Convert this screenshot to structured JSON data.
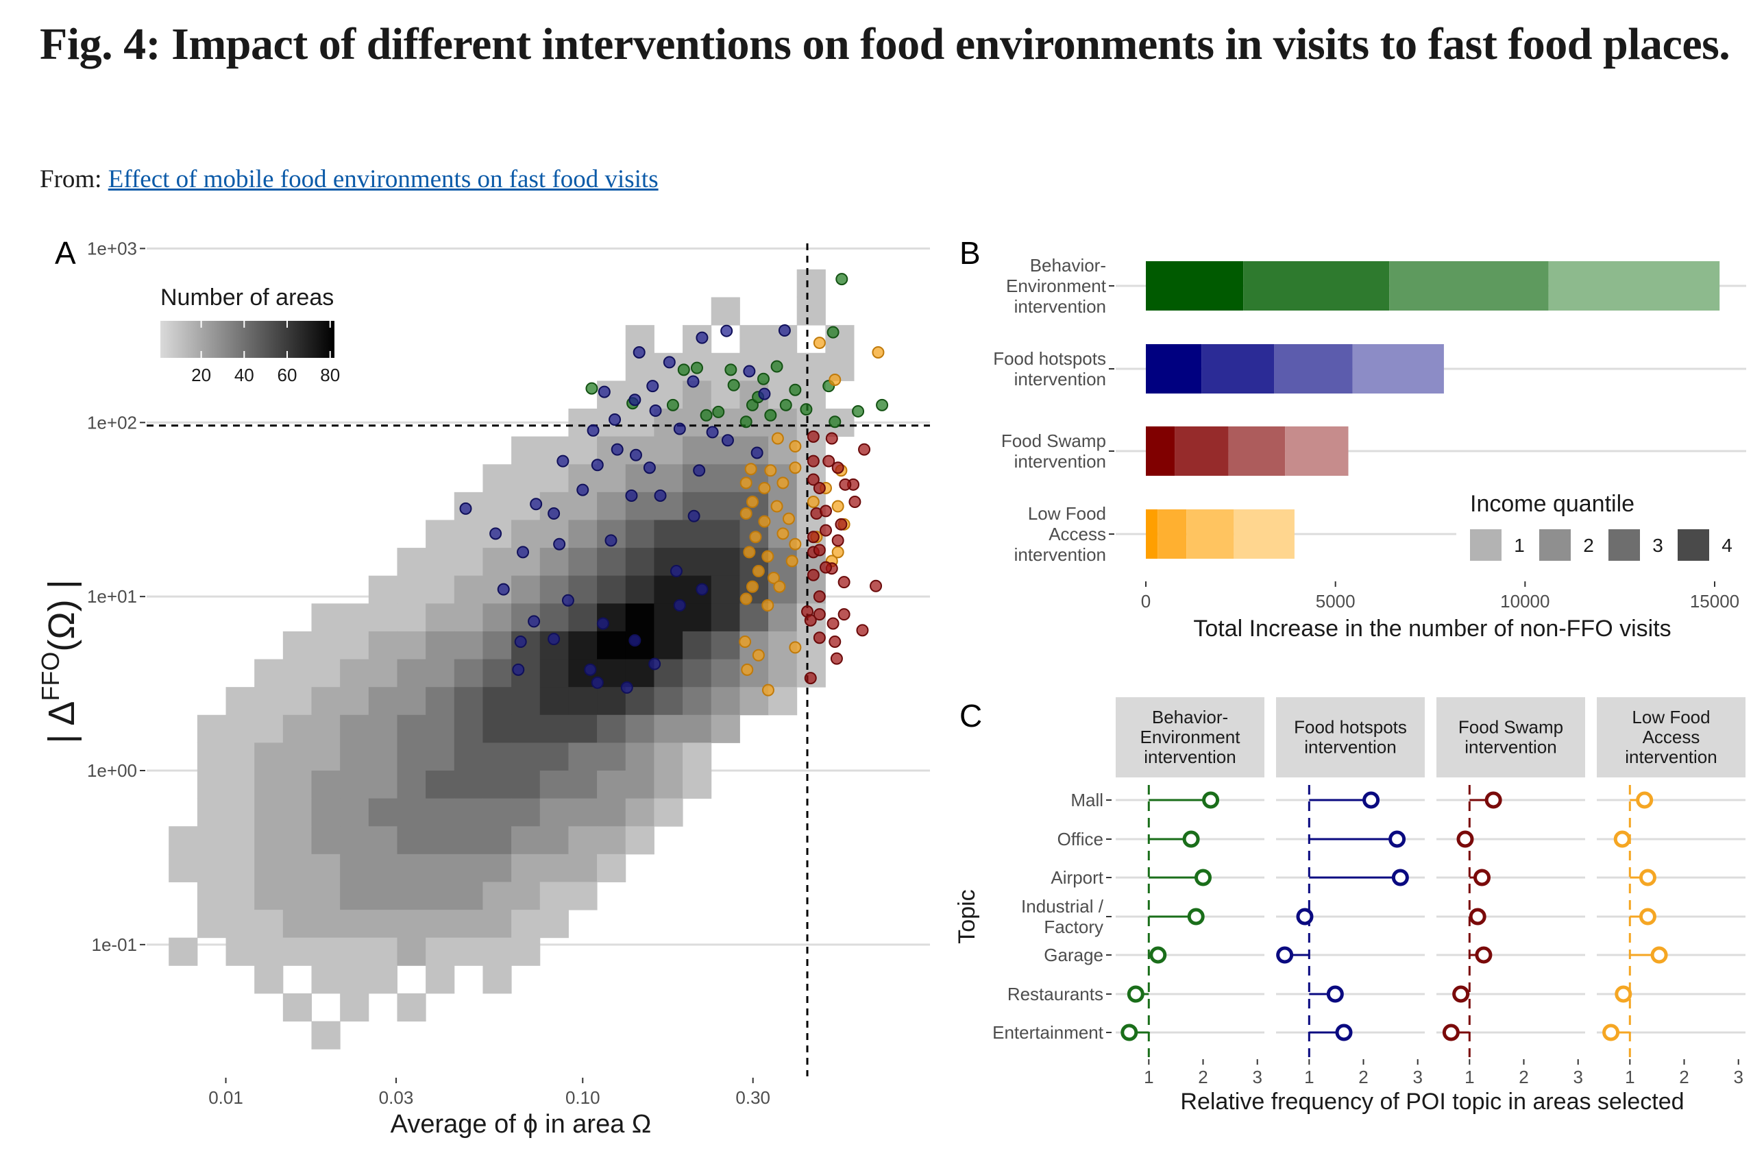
{
  "header": {
    "title": "Fig. 4: Impact of different interventions on food environments in visits to fast food places.",
    "from_label": "From:",
    "from_link": "Effect of mobile food environments on fast food visits",
    "link_color": "#0b5aa8"
  },
  "chart_data": [
    {
      "panel": "A",
      "type": "heatmap",
      "xlabel": "Average of ϕ in area Ω",
      "ylabel": {
        "pre": "| Δ",
        "sup": "FFO",
        "post": "(Ω) |"
      },
      "x_scale": "log",
      "y_scale": "log",
      "xlim": [
        0.006,
        0.94
      ],
      "ylim": [
        0.0175,
        1070
      ],
      "x_ticks": [
        {
          "v": 0.01,
          "label": "0.01"
        },
        {
          "v": 0.03,
          "label": "0.03"
        },
        {
          "v": 0.1,
          "label": "0.10"
        },
        {
          "v": 0.3,
          "label": "0.30"
        }
      ],
      "y_ticks": [
        {
          "v": 0.1,
          "label": "1e-01"
        },
        {
          "v": 1,
          "label": "1e+00"
        },
        {
          "v": 10,
          "label": "1e+01"
        },
        {
          "v": 100,
          "label": "1e+02"
        },
        {
          "v": 1000,
          "label": "1e+03"
        }
      ],
      "grid": "horizontal",
      "threshold_x": 0.426,
      "threshold_y": 96,
      "legend": {
        "title": "Number of areas",
        "ticks": [
          20,
          40,
          60,
          80
        ],
        "range": [
          1,
          82
        ],
        "placement": "top-left"
      },
      "density_rows": [
        "0000000000000000000000100",
        "0000000000000000000100100",
        "0000000000000000101011010",
        "0000000000000000111111110",
        "0000000000000001112121100",
        "0000000000000011122222110",
        "0000000000001112223332100",
        "0000000000011122334443100",
        "0000000000111223445553100",
        "0000000001112234566653100",
        "0000000011122345677764200",
        "0000000111223456788764200",
        "0000011112234568988753100",
        "0000111223346789986532100",
        "0001112233456788865432100",
        "0011122334566777654321000",
        "0111223344566665433200000",
        "0112223344555544321000000",
        "0112233345555443321000000",
        "0112233444444333210000000",
        "1112233344443322100000000",
        "1112223333332221000000000",
        "0112223333322110000000000",
        "0111222222221100000000000",
        "1011111121111000000000000",
        "0001011101010000000000000",
        "0000101010000000000000000",
        "0000010000000000000000000"
      ],
      "series": [
        {
          "color": "#1f7a1f",
          "edge": "#145214",
          "points": [
            [
              0.106,
              157
            ],
            [
              0.138,
              129
            ],
            [
              0.192,
              201
            ],
            [
              0.209,
              206
            ],
            [
              0.26,
              201
            ],
            [
              0.265,
              164
            ],
            [
              0.321,
              178
            ],
            [
              0.35,
              210
            ],
            [
              0.394,
              154
            ],
            [
              0.423,
              119
            ],
            [
              0.489,
              162
            ],
            [
              0.503,
              330
            ],
            [
              0.532,
              667
            ],
            [
              0.591,
              116
            ],
            [
              0.69,
              126
            ],
            [
              0.287,
              101
            ],
            [
              0.222,
              110
            ],
            [
              0.179,
              126
            ],
            [
              0.336,
              110
            ],
            [
              0.371,
              126
            ],
            [
              0.299,
              126
            ],
            [
              0.509,
              101
            ],
            [
              0.24,
              115
            ],
            [
              0.31,
              140
            ]
          ]
        },
        {
          "color": "#1f1f8f",
          "edge": "#10105a",
          "points": [
            [
              0.144,
              253
            ],
            [
              0.216,
              307
            ],
            [
              0.253,
              336
            ],
            [
              0.368,
              338
            ],
            [
              0.115,
              150
            ],
            [
              0.157,
              162
            ],
            [
              0.175,
              222
            ],
            [
              0.204,
              172
            ],
            [
              0.293,
              197
            ],
            [
              0.323,
              146
            ],
            [
              0.14,
              135
            ],
            [
              0.16,
              117
            ],
            [
              0.123,
              104
            ],
            [
              0.107,
              90
            ],
            [
              0.187,
              92
            ],
            [
              0.231,
              88
            ],
            [
              0.255,
              79
            ],
            [
              0.308,
              67
            ],
            [
              0.125,
              70
            ],
            [
              0.141,
              65
            ],
            [
              0.154,
              55
            ],
            [
              0.088,
              60
            ],
            [
              0.11,
              57
            ],
            [
              0.212,
              53
            ],
            [
              0.137,
              38
            ],
            [
              0.165,
              38
            ],
            [
              0.1,
              41
            ],
            [
              0.074,
              34
            ],
            [
              0.083,
              30
            ],
            [
              0.047,
              32
            ],
            [
              0.057,
              23
            ],
            [
              0.068,
              18
            ],
            [
              0.086,
              20
            ],
            [
              0.12,
              21
            ],
            [
              0.205,
              29
            ],
            [
              0.183,
              14
            ],
            [
              0.06,
              11
            ],
            [
              0.216,
              11
            ],
            [
              0.091,
              9.5
            ],
            [
              0.187,
              8.9
            ],
            [
              0.073,
              7.2
            ],
            [
              0.067,
              5.5
            ],
            [
              0.083,
              5.7
            ],
            [
              0.114,
              7.0
            ],
            [
              0.14,
              5.6
            ],
            [
              0.066,
              3.8
            ],
            [
              0.105,
              3.8
            ],
            [
              0.159,
              4.1
            ],
            [
              0.11,
              3.2
            ],
            [
              0.133,
              3.0
            ]
          ]
        },
        {
          "color": "#f5a21b",
          "edge": "#c07a0a",
          "points": [
            [
              0.461,
              287
            ],
            [
              0.509,
              176
            ],
            [
              0.673,
              253
            ],
            [
              0.352,
              81
            ],
            [
              0.394,
              73
            ],
            [
              0.296,
              54
            ],
            [
              0.336,
              53
            ],
            [
              0.394,
              55
            ],
            [
              0.364,
              45
            ],
            [
              0.287,
              45
            ],
            [
              0.323,
              42
            ],
            [
              0.299,
              35
            ],
            [
              0.35,
              33
            ],
            [
              0.287,
              30
            ],
            [
              0.323,
              27
            ],
            [
              0.378,
              28
            ],
            [
              0.305,
              22
            ],
            [
              0.364,
              23
            ],
            [
              0.394,
              20
            ],
            [
              0.293,
              18
            ],
            [
              0.33,
              17
            ],
            [
              0.386,
              16
            ],
            [
              0.311,
              14
            ],
            [
              0.343,
              12.8
            ],
            [
              0.299,
              11.4
            ],
            [
              0.356,
              11.4
            ],
            [
              0.287,
              9.7
            ],
            [
              0.33,
              8.9
            ],
            [
              0.285,
              5.5
            ],
            [
              0.311,
              4.6
            ],
            [
              0.289,
              3.8
            ],
            [
              0.331,
              2.9
            ],
            [
              0.394,
              5.1
            ],
            [
              0.443,
              35
            ],
            [
              0.48,
              42
            ],
            [
              0.53,
              53
            ],
            [
              0.519,
              33
            ],
            [
              0.54,
              26
            ],
            [
              0.452,
              22
            ],
            [
              0.499,
              16
            ],
            [
              0.519,
              18
            ]
          ]
        },
        {
          "color": "#a01515",
          "edge": "#6a0a0a",
          "points": [
            [
              0.443,
              83
            ],
            [
              0.499,
              81
            ],
            [
              0.615,
              70
            ],
            [
              0.443,
              60
            ],
            [
              0.489,
              60
            ],
            [
              0.519,
              55
            ],
            [
              0.573,
              44
            ],
            [
              0.544,
              44
            ],
            [
              0.579,
              35
            ],
            [
              0.443,
              47
            ],
            [
              0.461,
              42
            ],
            [
              0.452,
              30
            ],
            [
              0.48,
              31
            ],
            [
              0.53,
              26
            ],
            [
              0.443,
              22
            ],
            [
              0.48,
              24
            ],
            [
              0.519,
              21
            ],
            [
              0.443,
              18
            ],
            [
              0.461,
              18.5
            ],
            [
              0.499,
              14.5
            ],
            [
              0.443,
              13.3
            ],
            [
              0.48,
              14.7
            ],
            [
              0.54,
              12.1
            ],
            [
              0.663,
              11.5
            ],
            [
              0.461,
              10
            ],
            [
              0.426,
              8.2
            ],
            [
              0.435,
              7.3
            ],
            [
              0.461,
              7.9
            ],
            [
              0.54,
              7.9
            ],
            [
              0.608,
              6.4
            ],
            [
              0.461,
              5.8
            ],
            [
              0.515,
              4.4
            ],
            [
              0.435,
              3.4
            ],
            [
              0.503,
              7.0
            ],
            [
              0.509,
              5.5
            ]
          ]
        }
      ]
    },
    {
      "panel": "B",
      "type": "bar",
      "orientation": "horizontal",
      "stacked": true,
      "xlabel": "Total Increase in the number of non-FFO visits",
      "xlim": [
        0,
        15500
      ],
      "x_ticks": [
        0,
        5000,
        10000,
        15000
      ],
      "grid": "horizontal",
      "legend": {
        "title": "Income quantile",
        "entries": [
          "1",
          "2",
          "3",
          "4"
        ],
        "colors": [
          "#b3b3b3",
          "#8f8f8f",
          "#6e6e6e",
          "#4a4a4a"
        ],
        "placement": "bottom-right"
      },
      "stack_order": [
        "4",
        "3",
        "2",
        "1"
      ],
      "categories": [
        {
          "label": [
            "Behavior-",
            "Environment",
            "intervention"
          ],
          "values": [
            2570,
            3850,
            4200,
            4510
          ],
          "colors": [
            "#005a00",
            "#2e7a2e",
            "#5e9a5e",
            "#8dba8d"
          ]
        },
        {
          "label": [
            "Food hotspots",
            "intervention"
          ],
          "values": [
            1470,
            1910,
            2070,
            2410
          ],
          "colors": [
            "#000080",
            "#2b2b96",
            "#5c5cad",
            "#8c8cc6"
          ]
        },
        {
          "label": [
            "Food Swamp",
            "intervention"
          ],
          "values": [
            760,
            1420,
            1490,
            1670
          ],
          "colors": [
            "#800000",
            "#962b2b",
            "#ad5c5c",
            "#c68c8c"
          ]
        },
        {
          "label": [
            "Low Food",
            "Access",
            "intervention"
          ],
          "values": [
            310,
            760,
            1250,
            1600
          ],
          "colors": [
            "#ff9f00",
            "#ffb030",
            "#ffc460",
            "#ffd68f"
          ]
        }
      ]
    },
    {
      "panel": "C",
      "type": "scatter",
      "subtype": "lollipop",
      "xlabel": "Relative frequency of POI topic in areas selected",
      "ylabel": "Topic",
      "xlim": [
        0.39,
        3.13
      ],
      "x_ticks": [
        1,
        2,
        3
      ],
      "reference_x": 1,
      "topics": [
        [
          "Mall"
        ],
        [
          "Office"
        ],
        [
          "Airport"
        ],
        [
          "Industrial /",
          "Factory"
        ],
        [
          "Garage"
        ],
        [
          "Restaurants"
        ],
        [
          "Entertainment"
        ]
      ],
      "facets": [
        {
          "label": [
            "Behavior-",
            "Environment",
            "intervention"
          ],
          "color": "#1a6e1a",
          "values": [
            2.14,
            1.78,
            2.0,
            1.87,
            1.17,
            0.76,
            0.64
          ]
        },
        {
          "label": [
            "Food hotspots",
            "intervention"
          ],
          "color": "#0a0a80",
          "values": [
            2.14,
            2.62,
            2.68,
            0.92,
            0.55,
            1.48,
            1.64
          ]
        },
        {
          "label": [
            "Food Swamp",
            "intervention"
          ],
          "color": "#7a0a0a",
          "values": [
            1.44,
            0.92,
            1.23,
            1.15,
            1.26,
            0.84,
            0.66
          ]
        },
        {
          "label": [
            "Low Food",
            "Access",
            "intervention"
          ],
          "color": "#f5a623",
          "values": [
            1.27,
            0.86,
            1.33,
            1.33,
            1.54,
            0.88,
            0.65
          ]
        }
      ]
    }
  ],
  "panel_labels": [
    "A",
    "B",
    "C"
  ]
}
